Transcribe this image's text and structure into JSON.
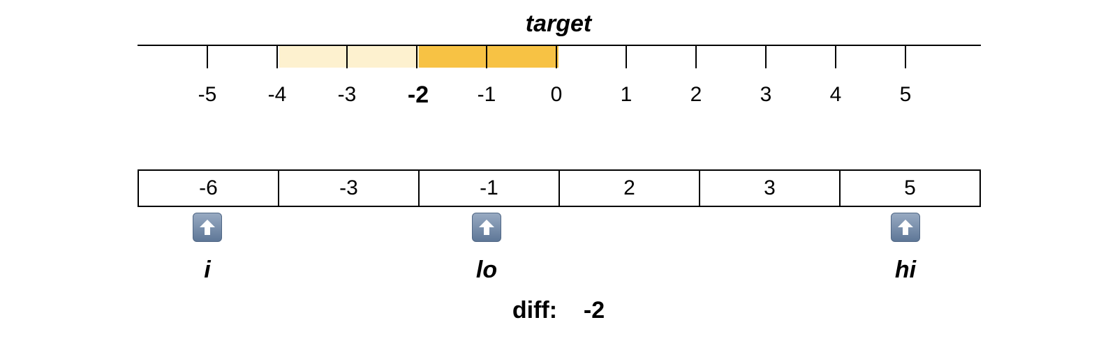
{
  "target_label": "target",
  "number_line": {
    "ticks": [
      "-5",
      "-4",
      "-3",
      "-2",
      "-1",
      "0",
      "1",
      "2",
      "3",
      "4",
      "5"
    ],
    "highlighted_value": "-2",
    "light_highlight_range": [
      "-4",
      "-2"
    ],
    "strong_highlight_range": [
      "-2",
      "0"
    ],
    "light_color": "#fdf1cf",
    "strong_color": "#f7c244"
  },
  "array": [
    "-6",
    "-3",
    "-1",
    "2",
    "3",
    "5"
  ],
  "pointers": {
    "i": "i",
    "lo": "lo",
    "hi": "hi"
  },
  "pointer_icon": "up-arrow-icon",
  "diff": {
    "label": "diff:",
    "value": "-2"
  }
}
